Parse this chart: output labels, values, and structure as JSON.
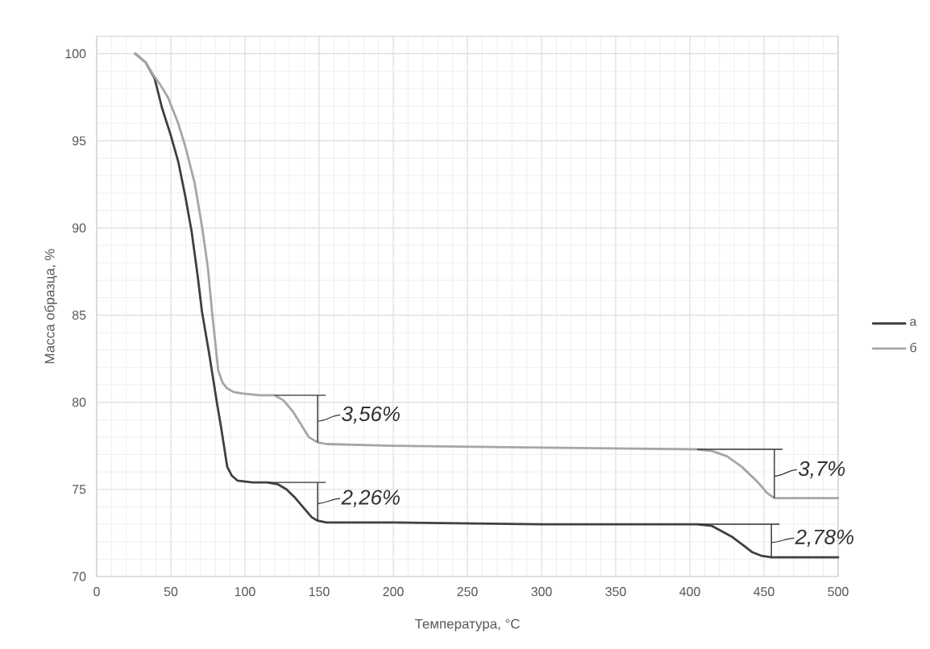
{
  "chart_data": {
    "type": "line",
    "xlabel": "Температура, °C",
    "ylabel": "Масса образца, %",
    "xlim": [
      0,
      500
    ],
    "xticks": [
      0,
      50,
      100,
      150,
      200,
      250,
      300,
      350,
      400,
      450,
      500
    ],
    "ylim": [
      70,
      101
    ],
    "yticks": [
      70,
      75,
      80,
      85,
      90,
      95,
      100
    ],
    "grid": true,
    "legend": "right",
    "series": [
      {
        "name": "а",
        "color": "#404040",
        "x": [
          26,
          33,
          39,
          44,
          50,
          55,
          60,
          64,
          68,
          71,
          76,
          81,
          84,
          88,
          91,
          95,
          105,
          115,
          122,
          128,
          134,
          140,
          145,
          149,
          155,
          200,
          300,
          405,
          415,
          428,
          436,
          442,
          448,
          455,
          500
        ],
        "values": [
          100,
          99.5,
          98.6,
          96.9,
          95.3,
          93.8,
          91.7,
          89.8,
          87.3,
          85.2,
          82.7,
          80.0,
          78.5,
          76.3,
          75.8,
          75.5,
          75.4,
          75.4,
          75.3,
          75.0,
          74.5,
          73.9,
          73.4,
          73.2,
          73.1,
          73.1,
          73.0,
          73.0,
          72.9,
          72.3,
          71.8,
          71.4,
          71.2,
          71.1,
          71.1
        ]
      },
      {
        "name": "б",
        "color": "#a6a6a6",
        "x": [
          26,
          33,
          38,
          43,
          48,
          55,
          60,
          66,
          71,
          75,
          78,
          82,
          85,
          88,
          92,
          98,
          110,
          120,
          126,
          132,
          138,
          143,
          149,
          155,
          200,
          300,
          405,
          415,
          425,
          435,
          446,
          452,
          457,
          500
        ],
        "values": [
          100,
          99.5,
          98.8,
          98.2,
          97.5,
          96.0,
          94.6,
          92.6,
          90.1,
          87.7,
          85.0,
          81.8,
          81.1,
          80.8,
          80.6,
          80.5,
          80.4,
          80.4,
          80.1,
          79.5,
          78.7,
          78.0,
          77.7,
          77.6,
          77.5,
          77.4,
          77.3,
          77.2,
          76.9,
          76.3,
          75.4,
          74.8,
          74.5,
          74.5
        ]
      }
    ],
    "annotations": [
      {
        "text": "3,56%",
        "x": 149,
        "y": 77.7
      },
      {
        "text": "2,26%",
        "x": 149,
        "y": 73.2
      },
      {
        "text": "3,7%",
        "x": 457,
        "y": 74.5
      },
      {
        "text": "2,78%",
        "x": 455,
        "y": 71.1
      }
    ]
  }
}
